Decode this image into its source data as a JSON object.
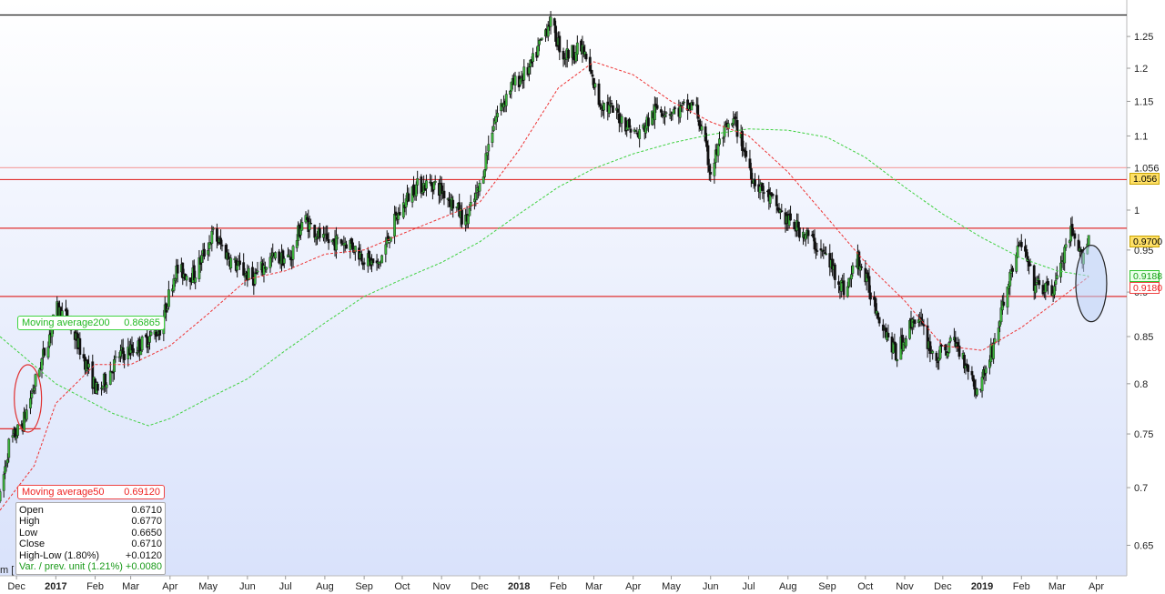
{
  "chart_data": {
    "type": "candlestick",
    "y_axis": {
      "scale": "log",
      "range": [
        0.625,
        1.31
      ],
      "ticks": [
        "1.25",
        "1.2",
        "1.15",
        "1.1",
        "1.056",
        "1",
        "0.95",
        "0.9",
        "0.85",
        "0.8",
        "0.75",
        "0.7",
        "0.65"
      ]
    },
    "x_axis": {
      "range": [
        "2016-11-18",
        "2019-04-25"
      ],
      "ticks": [
        {
          "label": "Dec",
          "date": "2016-12-01",
          "bold": false
        },
        {
          "label": "2017",
          "date": "2017-01-01",
          "bold": true
        },
        {
          "label": "Feb",
          "date": "2017-02-01",
          "bold": false
        },
        {
          "label": "Mar",
          "date": "2017-03-01",
          "bold": false
        },
        {
          "label": "Apr",
          "date": "2017-04-01",
          "bold": false
        },
        {
          "label": "May",
          "date": "2017-05-01",
          "bold": false
        },
        {
          "label": "Jun",
          "date": "2017-06-01",
          "bold": false
        },
        {
          "label": "Jul",
          "date": "2017-07-01",
          "bold": false
        },
        {
          "label": "Aug",
          "date": "2017-08-01",
          "bold": false
        },
        {
          "label": "Sep",
          "date": "2017-09-01",
          "bold": false
        },
        {
          "label": "Oct",
          "date": "2017-10-01",
          "bold": false
        },
        {
          "label": "Nov",
          "date": "2017-11-01",
          "bold": false
        },
        {
          "label": "Dec",
          "date": "2017-12-01",
          "bold": false
        },
        {
          "label": "2018",
          "date": "2018-01-01",
          "bold": true
        },
        {
          "label": "Feb",
          "date": "2018-02-01",
          "bold": false
        },
        {
          "label": "Mar",
          "date": "2018-03-01",
          "bold": false
        },
        {
          "label": "Apr",
          "date": "2018-04-01",
          "bold": false
        },
        {
          "label": "May",
          "date": "2018-05-01",
          "bold": false
        },
        {
          "label": "Jun",
          "date": "2018-06-01",
          "bold": false
        },
        {
          "label": "Jul",
          "date": "2018-07-01",
          "bold": false
        },
        {
          "label": "Aug",
          "date": "2018-08-01",
          "bold": false
        },
        {
          "label": "Sep",
          "date": "2018-09-01",
          "bold": false
        },
        {
          "label": "Oct",
          "date": "2018-10-01",
          "bold": false
        },
        {
          "label": "Nov",
          "date": "2018-11-01",
          "bold": false
        },
        {
          "label": "Dec",
          "date": "2018-12-01",
          "bold": false
        },
        {
          "label": "2019",
          "date": "2019-01-01",
          "bold": true
        },
        {
          "label": "Feb",
          "date": "2019-02-01",
          "bold": false
        },
        {
          "label": "Mar",
          "date": "2019-03-01",
          "bold": false
        },
        {
          "label": "Apr",
          "date": "2019-04-01",
          "bold": false
        }
      ]
    },
    "price_path": [
      {
        "date": "2016-11-18",
        "value": 0.69
      },
      {
        "date": "2016-11-25",
        "value": 0.74
      },
      {
        "date": "2016-12-06",
        "value": 0.76
      },
      {
        "date": "2016-12-20",
        "value": 0.82
      },
      {
        "date": "2017-01-02",
        "value": 0.88
      },
      {
        "date": "2017-01-10",
        "value": 0.87
      },
      {
        "date": "2017-01-25",
        "value": 0.82
      },
      {
        "date": "2017-02-03",
        "value": 0.79
      },
      {
        "date": "2017-02-20",
        "value": 0.83
      },
      {
        "date": "2017-03-08",
        "value": 0.84
      },
      {
        "date": "2017-03-25",
        "value": 0.86
      },
      {
        "date": "2017-04-05",
        "value": 0.925
      },
      {
        "date": "2017-04-20",
        "value": 0.92
      },
      {
        "date": "2017-05-05",
        "value": 0.97
      },
      {
        "date": "2017-05-20",
        "value": 0.935
      },
      {
        "date": "2017-06-05",
        "value": 0.915
      },
      {
        "date": "2017-06-20",
        "value": 0.94
      },
      {
        "date": "2017-07-05",
        "value": 0.94
      },
      {
        "date": "2017-07-15",
        "value": 0.99
      },
      {
        "date": "2017-08-01",
        "value": 0.96
      },
      {
        "date": "2017-08-20",
        "value": 0.96
      },
      {
        "date": "2017-09-01",
        "value": 0.94
      },
      {
        "date": "2017-09-12",
        "value": 0.93
      },
      {
        "date": "2017-09-25",
        "value": 0.985
      },
      {
        "date": "2017-10-10",
        "value": 1.03
      },
      {
        "date": "2017-10-25",
        "value": 1.035
      },
      {
        "date": "2017-11-05",
        "value": 1.02
      },
      {
        "date": "2017-11-20",
        "value": 0.985
      },
      {
        "date": "2017-12-01",
        "value": 1.03
      },
      {
        "date": "2017-12-12",
        "value": 1.12
      },
      {
        "date": "2017-12-25",
        "value": 1.17
      },
      {
        "date": "2018-01-10",
        "value": 1.2
      },
      {
        "date": "2018-01-25",
        "value": 1.275
      },
      {
        "date": "2018-02-05",
        "value": 1.22
      },
      {
        "date": "2018-02-20",
        "value": 1.23
      },
      {
        "date": "2018-03-05",
        "value": 1.15
      },
      {
        "date": "2018-03-20",
        "value": 1.13
      },
      {
        "date": "2018-04-05",
        "value": 1.1
      },
      {
        "date": "2018-04-20",
        "value": 1.14
      },
      {
        "date": "2018-05-05",
        "value": 1.135
      },
      {
        "date": "2018-05-20",
        "value": 1.145
      },
      {
        "date": "2018-06-01",
        "value": 1.05
      },
      {
        "date": "2018-06-10",
        "value": 1.1
      },
      {
        "date": "2018-06-20",
        "value": 1.12
      },
      {
        "date": "2018-07-05",
        "value": 1.04
      },
      {
        "date": "2018-07-15",
        "value": 1.02
      },
      {
        "date": "2018-08-01",
        "value": 0.985
      },
      {
        "date": "2018-08-15",
        "value": 0.97
      },
      {
        "date": "2018-09-01",
        "value": 0.94
      },
      {
        "date": "2018-09-15",
        "value": 0.9
      },
      {
        "date": "2018-09-25",
        "value": 0.94
      },
      {
        "date": "2018-10-10",
        "value": 0.88
      },
      {
        "date": "2018-10-25",
        "value": 0.83
      },
      {
        "date": "2018-11-10",
        "value": 0.875
      },
      {
        "date": "2018-11-25",
        "value": 0.825
      },
      {
        "date": "2018-12-10",
        "value": 0.845
      },
      {
        "date": "2018-12-22",
        "value": 0.815
      },
      {
        "date": "2018-12-28",
        "value": 0.79
      },
      {
        "date": "2019-01-10",
        "value": 0.84
      },
      {
        "date": "2019-01-25",
        "value": 0.93
      },
      {
        "date": "2019-02-01",
        "value": 0.96
      },
      {
        "date": "2019-02-10",
        "value": 0.91
      },
      {
        "date": "2019-02-25",
        "value": 0.9
      },
      {
        "date": "2019-03-05",
        "value": 0.935
      },
      {
        "date": "2019-03-12",
        "value": 0.97
      },
      {
        "date": "2019-03-20",
        "value": 0.94
      },
      {
        "date": "2019-03-26",
        "value": 0.965
      }
    ],
    "moving_average_200": [
      {
        "date": "2016-11-18",
        "value": 0.85
      },
      {
        "date": "2017-01-01",
        "value": 0.8
      },
      {
        "date": "2017-02-15",
        "value": 0.77
      },
      {
        "date": "2017-03-15",
        "value": 0.758
      },
      {
        "date": "2017-04-01",
        "value": 0.765
      },
      {
        "date": "2017-05-01",
        "value": 0.785
      },
      {
        "date": "2017-06-01",
        "value": 0.805
      },
      {
        "date": "2017-07-01",
        "value": 0.835
      },
      {
        "date": "2017-08-01",
        "value": 0.865
      },
      {
        "date": "2017-09-01",
        "value": 0.895
      },
      {
        "date": "2017-10-01",
        "value": 0.915
      },
      {
        "date": "2017-11-01",
        "value": 0.935
      },
      {
        "date": "2017-12-01",
        "value": 0.96
      },
      {
        "date": "2018-01-01",
        "value": 0.995
      },
      {
        "date": "2018-02-01",
        "value": 1.03
      },
      {
        "date": "2018-03-01",
        "value": 1.055
      },
      {
        "date": "2018-04-01",
        "value": 1.075
      },
      {
        "date": "2018-05-01",
        "value": 1.09
      },
      {
        "date": "2018-06-01",
        "value": 1.102
      },
      {
        "date": "2018-07-01",
        "value": 1.11
      },
      {
        "date": "2018-08-01",
        "value": 1.108
      },
      {
        "date": "2018-09-01",
        "value": 1.098
      },
      {
        "date": "2018-10-01",
        "value": 1.07
      },
      {
        "date": "2018-11-01",
        "value": 1.03
      },
      {
        "date": "2018-12-01",
        "value": 0.995
      },
      {
        "date": "2019-01-01",
        "value": 0.965
      },
      {
        "date": "2019-02-01",
        "value": 0.94
      },
      {
        "date": "2019-03-01",
        "value": 0.925
      },
      {
        "date": "2019-03-26",
        "value": 0.9188
      }
    ],
    "moving_average_50": [
      {
        "date": "2016-11-18",
        "value": 0.68
      },
      {
        "date": "2016-12-15",
        "value": 0.72
      },
      {
        "date": "2017-01-01",
        "value": 0.78
      },
      {
        "date": "2017-02-01",
        "value": 0.82
      },
      {
        "date": "2017-03-01",
        "value": 0.82
      },
      {
        "date": "2017-04-01",
        "value": 0.84
      },
      {
        "date": "2017-05-01",
        "value": 0.875
      },
      {
        "date": "2017-06-01",
        "value": 0.915
      },
      {
        "date": "2017-07-01",
        "value": 0.925
      },
      {
        "date": "2017-08-01",
        "value": 0.945
      },
      {
        "date": "2017-09-01",
        "value": 0.95
      },
      {
        "date": "2017-10-01",
        "value": 0.97
      },
      {
        "date": "2017-11-01",
        "value": 0.99
      },
      {
        "date": "2017-12-01",
        "value": 1.01
      },
      {
        "date": "2018-01-01",
        "value": 1.08
      },
      {
        "date": "2018-02-01",
        "value": 1.17
      },
      {
        "date": "2018-03-01",
        "value": 1.21
      },
      {
        "date": "2018-04-01",
        "value": 1.19
      },
      {
        "date": "2018-05-01",
        "value": 1.15
      },
      {
        "date": "2018-06-01",
        "value": 1.12
      },
      {
        "date": "2018-07-01",
        "value": 1.1
      },
      {
        "date": "2018-08-01",
        "value": 1.05
      },
      {
        "date": "2018-09-01",
        "value": 0.99
      },
      {
        "date": "2018-10-01",
        "value": 0.935
      },
      {
        "date": "2018-11-01",
        "value": 0.89
      },
      {
        "date": "2018-12-01",
        "value": 0.84
      },
      {
        "date": "2019-01-01",
        "value": 0.835
      },
      {
        "date": "2019-02-01",
        "value": 0.86
      },
      {
        "date": "2019-03-01",
        "value": 0.89
      },
      {
        "date": "2019-03-26",
        "value": 0.918
      }
    ],
    "horizontal_lines": [
      {
        "value": 1.285,
        "color": "#222222"
      },
      {
        "value": 1.056,
        "color": "#f4a8a8"
      },
      {
        "value": 1.04,
        "color": "#e03030"
      },
      {
        "value": 0.977,
        "color": "#e03030"
      },
      {
        "value": 0.895,
        "color": "#e03030"
      }
    ],
    "short_segment": {
      "start": "2016-11-18",
      "end": "2016-12-20",
      "value": 0.755,
      "color": "#e03030"
    },
    "ellipses": [
      {
        "date": "2016-12-10",
        "value": 0.785,
        "color": "#e03030",
        "fill": "none"
      },
      {
        "date": "2019-03-28",
        "value": 0.91,
        "color": "#222222",
        "fill": "rgba(190,210,245,0.55)"
      }
    ]
  },
  "legend": {
    "ma200": {
      "label": "Moving average200",
      "value": "0.86865",
      "color": "#22b822"
    },
    "ma50": {
      "label": "Moving average50",
      "value": "0.69120",
      "color": "#e22222"
    }
  },
  "info": [
    {
      "label": "Open",
      "value": "0.6710"
    },
    {
      "label": "High",
      "value": "0.6770"
    },
    {
      "label": "Low",
      "value": "0.6650"
    },
    {
      "label": "Close",
      "value": "0.6710"
    },
    {
      "label": "High-Low (1.80%)",
      "value": "+0.0120"
    },
    {
      "label": "Var. / prev. unit (1.21%)",
      "value": "+0.0080"
    }
  ],
  "price_tags": {
    "t1056": "1.056",
    "t9700": "0.9700",
    "t9188": "0.9188",
    "t9180": "0.9180"
  },
  "partial_label": "m ["
}
